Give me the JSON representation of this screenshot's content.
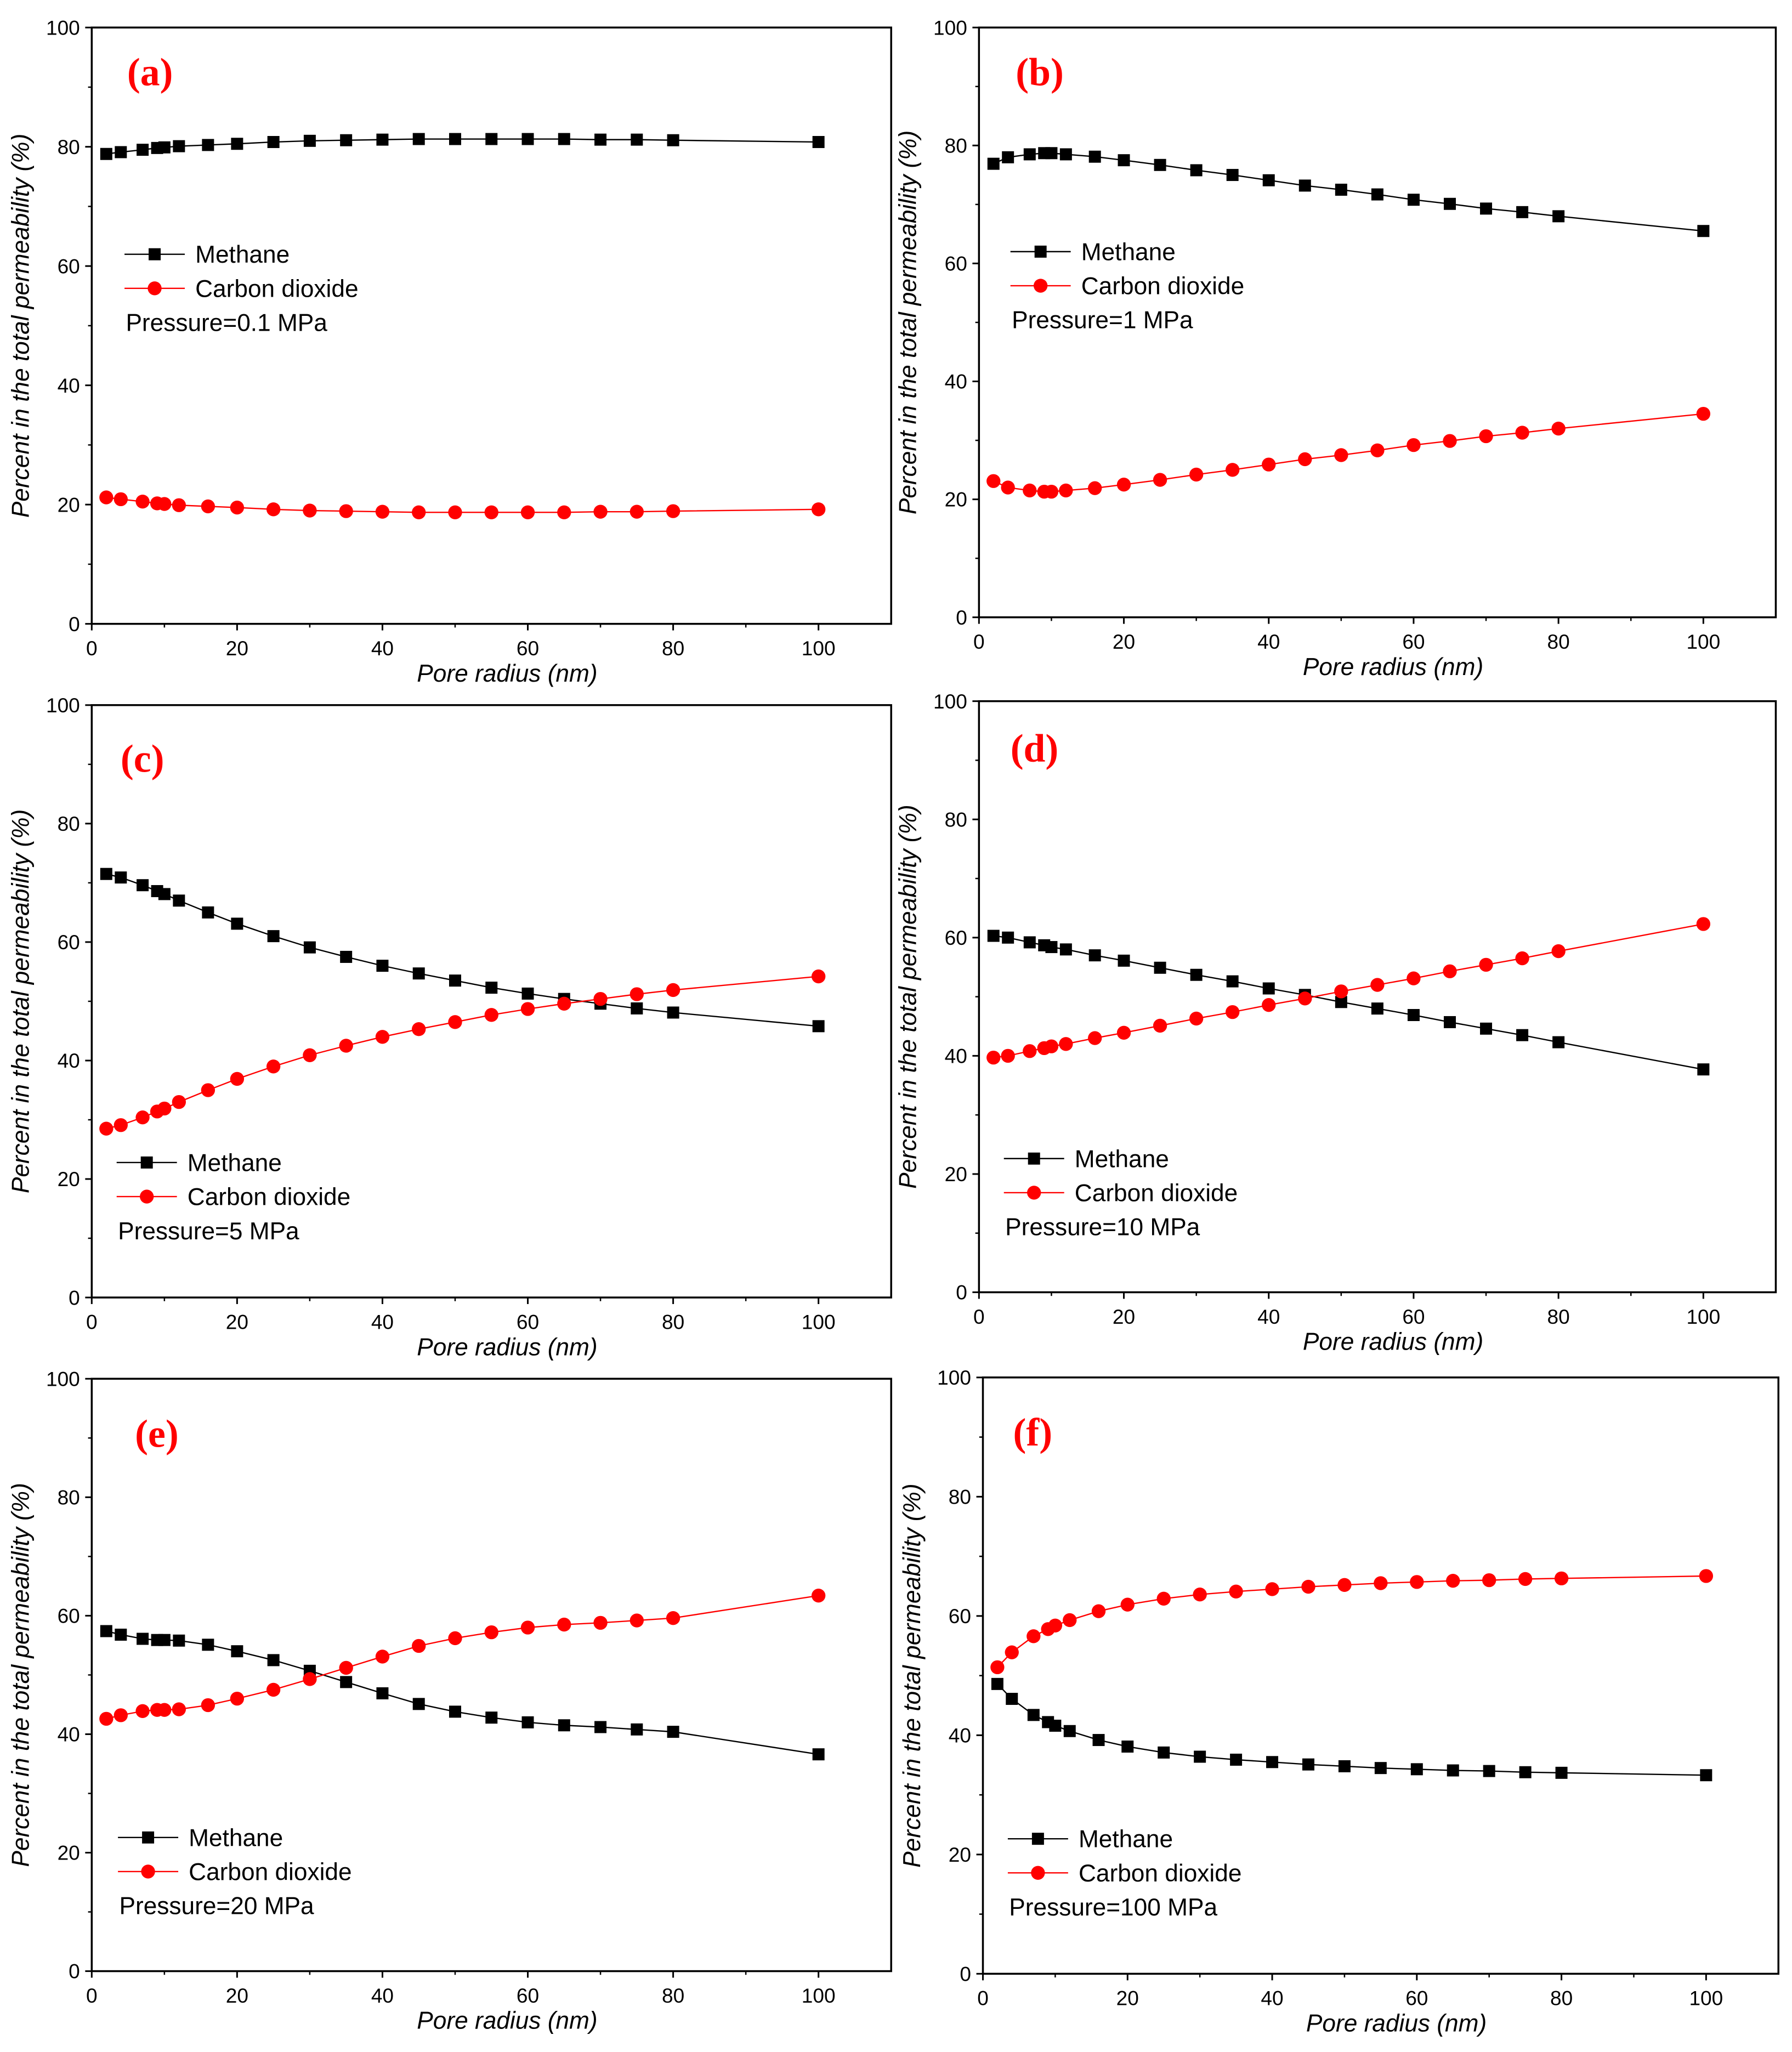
{
  "chart_data": [
    {
      "type": "line",
      "panel_label": "(a)",
      "pressure_label": "Pressure=0.1 MPa",
      "xlabel": "Pore radius (nm)",
      "ylabel": "Percent in the total permeability (%)",
      "xlim": [
        0,
        110
      ],
      "ylim": [
        0,
        100
      ],
      "xticks": [
        0,
        20,
        40,
        60,
        80,
        100
      ],
      "yticks": [
        0,
        20,
        40,
        60,
        80,
        100
      ],
      "x": [
        2,
        4,
        7,
        9,
        10,
        12,
        16,
        20,
        25,
        30,
        35,
        40,
        45,
        50,
        55,
        60,
        65,
        70,
        75,
        80,
        100
      ],
      "series": [
        {
          "name": "Methane",
          "color": "#000000",
          "marker": "square",
          "values": [
            78.8,
            79.1,
            79.5,
            79.8,
            79.9,
            80.1,
            80.3,
            80.5,
            80.8,
            81.0,
            81.1,
            81.2,
            81.3,
            81.3,
            81.3,
            81.3,
            81.3,
            81.2,
            81.2,
            81.1,
            80.8
          ]
        },
        {
          "name": "Carbon dioxide",
          "color": "#ff0000",
          "marker": "circle",
          "values": [
            21.2,
            20.9,
            20.5,
            20.2,
            20.1,
            19.9,
            19.7,
            19.5,
            19.2,
            19.0,
            18.9,
            18.8,
            18.7,
            18.7,
            18.7,
            18.7,
            18.7,
            18.8,
            18.8,
            18.9,
            19.2
          ]
        }
      ]
    },
    {
      "type": "line",
      "panel_label": "(b)",
      "pressure_label": "Pressure=1 MPa",
      "xlabel": "Pore radius (nm)",
      "ylabel": "Percent in the total permeability (%)",
      "xlim": [
        0,
        110
      ],
      "ylim": [
        0,
        100
      ],
      "xticks": [
        0,
        20,
        40,
        60,
        80,
        100
      ],
      "yticks": [
        0,
        20,
        40,
        60,
        80,
        100
      ],
      "x": [
        2,
        4,
        7,
        9,
        10,
        12,
        16,
        20,
        25,
        30,
        35,
        40,
        45,
        50,
        55,
        60,
        65,
        70,
        75,
        80,
        100
      ],
      "series": [
        {
          "name": "Methane",
          "color": "#000000",
          "marker": "square",
          "values": [
            76.9,
            78.0,
            78.5,
            78.7,
            78.7,
            78.5,
            78.1,
            77.5,
            76.7,
            75.8,
            75.0,
            74.1,
            73.2,
            72.5,
            71.7,
            70.8,
            70.1,
            69.3,
            68.7,
            68.0,
            65.5
          ]
        },
        {
          "name": "Carbon dioxide",
          "color": "#ff0000",
          "marker": "circle",
          "values": [
            23.1,
            22.0,
            21.5,
            21.3,
            21.3,
            21.5,
            21.9,
            22.5,
            23.3,
            24.2,
            25.0,
            25.9,
            26.8,
            27.5,
            28.3,
            29.2,
            29.9,
            30.7,
            31.3,
            32.0,
            34.5
          ]
        }
      ]
    },
    {
      "type": "line",
      "panel_label": "(c)",
      "pressure_label": "Pressure=5 MPa",
      "xlabel": "Pore radius (nm)",
      "ylabel": "Percent in the total permeability (%)",
      "xlim": [
        0,
        110
      ],
      "ylim": [
        0,
        100
      ],
      "xticks": [
        0,
        20,
        40,
        60,
        80,
        100
      ],
      "yticks": [
        0,
        20,
        40,
        60,
        80,
        100
      ],
      "x": [
        2,
        4,
        7,
        9,
        10,
        12,
        16,
        20,
        25,
        30,
        35,
        40,
        45,
        50,
        55,
        60,
        65,
        70,
        75,
        80,
        100
      ],
      "series": [
        {
          "name": "Methane",
          "color": "#000000",
          "marker": "square",
          "values": [
            71.5,
            70.9,
            69.6,
            68.6,
            68.1,
            67.0,
            65.0,
            63.1,
            61.0,
            59.1,
            57.5,
            56.0,
            54.7,
            53.5,
            52.3,
            51.3,
            50.4,
            49.6,
            48.8,
            48.1,
            45.8
          ]
        },
        {
          "name": "Carbon dioxide",
          "color": "#ff0000",
          "marker": "circle",
          "values": [
            28.5,
            29.1,
            30.4,
            31.4,
            31.9,
            33.0,
            35.0,
            36.9,
            39.0,
            40.9,
            42.5,
            44.0,
            45.3,
            46.5,
            47.7,
            48.7,
            49.6,
            50.4,
            51.2,
            51.9,
            54.2
          ]
        }
      ]
    },
    {
      "type": "line",
      "panel_label": "(d)",
      "pressure_label": "Pressure=10 MPa",
      "xlabel": "Pore radius (nm)",
      "ylabel": "Percent in the total permeability (%)",
      "xlim": [
        0,
        110
      ],
      "ylim": [
        0,
        100
      ],
      "xticks": [
        0,
        20,
        40,
        60,
        80,
        100
      ],
      "yticks": [
        0,
        20,
        40,
        60,
        80,
        100
      ],
      "x": [
        2,
        4,
        7,
        9,
        10,
        12,
        16,
        20,
        25,
        30,
        35,
        40,
        45,
        50,
        55,
        60,
        65,
        70,
        75,
        80,
        100
      ],
      "series": [
        {
          "name": "Methane",
          "color": "#000000",
          "marker": "square",
          "values": [
            60.3,
            60.0,
            59.2,
            58.7,
            58.4,
            58.0,
            57.0,
            56.1,
            54.9,
            53.7,
            52.6,
            51.4,
            50.3,
            49.1,
            48.0,
            46.9,
            45.7,
            44.6,
            43.5,
            42.3,
            37.7
          ]
        },
        {
          "name": "Carbon dioxide",
          "color": "#ff0000",
          "marker": "circle",
          "values": [
            39.7,
            40.0,
            40.8,
            41.3,
            41.6,
            42.0,
            43.0,
            43.9,
            45.1,
            46.3,
            47.4,
            48.6,
            49.7,
            50.9,
            52.0,
            53.1,
            54.3,
            55.4,
            56.5,
            57.7,
            62.3
          ]
        }
      ]
    },
    {
      "type": "line",
      "panel_label": "(e)",
      "pressure_label": "Pressure=20 MPa",
      "xlabel": "Pore radius (nm)",
      "ylabel": "Percent in the total permeability (%)",
      "xlim": [
        0,
        110
      ],
      "ylim": [
        0,
        100
      ],
      "xticks": [
        0,
        20,
        40,
        60,
        80,
        100
      ],
      "yticks": [
        0,
        20,
        40,
        60,
        80,
        100
      ],
      "x": [
        2,
        4,
        7,
        9,
        10,
        12,
        16,
        20,
        25,
        30,
        35,
        40,
        45,
        50,
        55,
        60,
        65,
        70,
        75,
        80,
        100
      ],
      "series": [
        {
          "name": "Methane",
          "color": "#000000",
          "marker": "square",
          "values": [
            57.4,
            56.8,
            56.1,
            55.9,
            55.9,
            55.8,
            55.1,
            54.0,
            52.5,
            50.7,
            48.8,
            46.9,
            45.1,
            43.8,
            42.8,
            42.0,
            41.5,
            41.2,
            40.8,
            40.4,
            36.6
          ]
        },
        {
          "name": "Carbon dioxide",
          "color": "#ff0000",
          "marker": "circle",
          "values": [
            42.6,
            43.2,
            43.9,
            44.1,
            44.1,
            44.2,
            44.9,
            46.0,
            47.5,
            49.3,
            51.2,
            53.1,
            54.9,
            56.2,
            57.2,
            58.0,
            58.5,
            58.8,
            59.2,
            59.6,
            63.4
          ]
        }
      ]
    },
    {
      "type": "line",
      "panel_label": "(f)",
      "pressure_label": "Pressure=100 MPa",
      "xlabel": "Pore radius (nm)",
      "ylabel": "Percent in the total permeability (%)",
      "xlim": [
        0,
        110
      ],
      "ylim": [
        0,
        100
      ],
      "xticks": [
        0,
        20,
        40,
        60,
        80,
        100
      ],
      "yticks": [
        0,
        20,
        40,
        60,
        80,
        100
      ],
      "x": [
        2,
        4,
        7,
        9,
        10,
        12,
        16,
        20,
        25,
        30,
        35,
        40,
        45,
        50,
        55,
        60,
        65,
        70,
        75,
        80,
        100
      ],
      "series": [
        {
          "name": "Methane",
          "color": "#000000",
          "marker": "square",
          "values": [
            48.6,
            46.1,
            43.4,
            42.2,
            41.6,
            40.7,
            39.2,
            38.1,
            37.1,
            36.4,
            35.9,
            35.5,
            35.1,
            34.8,
            34.5,
            34.3,
            34.1,
            34.0,
            33.8,
            33.7,
            33.3
          ]
        },
        {
          "name": "Carbon dioxide",
          "color": "#ff0000",
          "marker": "circle",
          "values": [
            51.4,
            53.9,
            56.6,
            57.8,
            58.4,
            59.3,
            60.8,
            61.9,
            62.9,
            63.6,
            64.1,
            64.5,
            64.9,
            65.2,
            65.5,
            65.7,
            65.9,
            66.0,
            66.2,
            66.3,
            66.7
          ]
        }
      ]
    }
  ]
}
